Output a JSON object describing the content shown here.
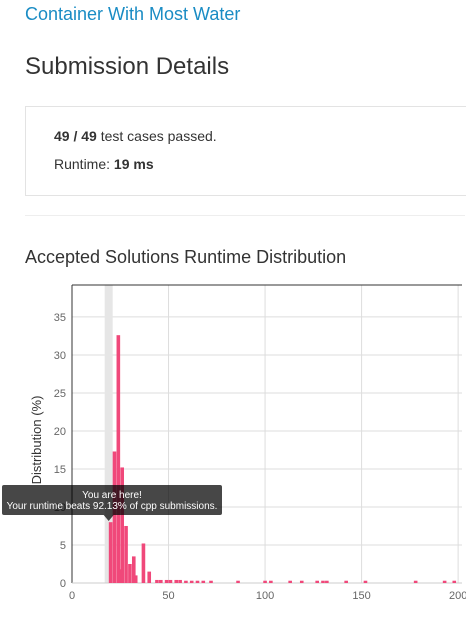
{
  "header": {
    "problem_title": "Container With Most Water",
    "page_title": "Submission Details"
  },
  "result": {
    "cases": "49 / 49",
    "cases_label": "test cases passed.",
    "runtime_label": "Runtime:",
    "runtime": "19 ms"
  },
  "chart_data": {
    "type": "bar",
    "title": "Accepted Solutions Runtime Distribution",
    "y_label": "Distribution (%)",
    "x": [
      20,
      22,
      24,
      25,
      26,
      28,
      30,
      32,
      33,
      37,
      40,
      44,
      46,
      49,
      51,
      54,
      56,
      59,
      62,
      65,
      68,
      72,
      86,
      100,
      103,
      113,
      119,
      127,
      130,
      132,
      142,
      152,
      178,
      193,
      198
    ],
    "values": [
      8,
      17.3,
      32.6,
      1.8,
      15.2,
      7.5,
      2.5,
      3.5,
      1,
      5.2,
      1.5,
      0.4,
      0.4,
      0.4,
      0.4,
      0.4,
      0.4,
      0.3,
      0.3,
      0.3,
      0.3,
      0.3,
      0.3,
      0.3,
      0.3,
      0.3,
      0.3,
      0.3,
      0.3,
      0.3,
      0.3,
      0.3,
      0.3,
      0.3,
      0.3
    ],
    "color": "#f0487a",
    "xlim": [
      0,
      202
    ],
    "ylim": [
      0,
      39.2
    ],
    "xticks": [
      0,
      50,
      100,
      150,
      200
    ],
    "yticks": [
      0,
      5,
      10,
      15,
      20,
      25,
      30,
      35
    ],
    "grid": true,
    "highlight_x": 19,
    "tooltip": {
      "title": "You are here!",
      "text": "Your runtime beats 92.13% of cpp submissions."
    }
  }
}
